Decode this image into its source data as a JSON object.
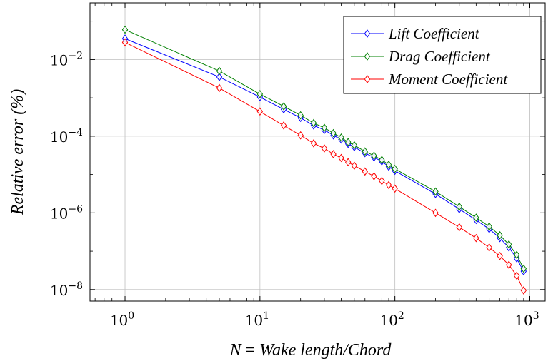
{
  "chart_data": {
    "type": "line",
    "title": "",
    "xlabel_math": "N",
    "xlabel_eq": " = ",
    "xlabel_text": "Wake length/Chord",
    "ylabel": "Relative error (%)",
    "x_scale": "log",
    "y_scale": "log",
    "xlim": [
      0.55,
      1300
    ],
    "ylim": [
      5e-09,
      0.3
    ],
    "grid": true,
    "legend_position": "top-right",
    "x_ticks": [
      {
        "base": "10",
        "exp": "0",
        "value": 1
      },
      {
        "base": "10",
        "exp": "1",
        "value": 10
      },
      {
        "base": "10",
        "exp": "2",
        "value": 100
      },
      {
        "base": "10",
        "exp": "3",
        "value": 1000
      }
    ],
    "y_ticks": [
      {
        "base": "10",
        "exp": "−2",
        "value": 0.01
      },
      {
        "base": "10",
        "exp": "−4",
        "value": 0.0001
      },
      {
        "base": "10",
        "exp": "−6",
        "value": 1e-06
      },
      {
        "base": "10",
        "exp": "−8",
        "value": 1e-08
      }
    ],
    "x": [
      1,
      5,
      10,
      15,
      20,
      25,
      30,
      35,
      40,
      45,
      50,
      60,
      70,
      80,
      90,
      100,
      200,
      300,
      400,
      500,
      600,
      700,
      800,
      900
    ],
    "series": [
      {
        "name": "Lift Coefficient",
        "color": "#0000ff",
        "values": [
          0.035,
          0.0035,
          0.00105,
          0.0005,
          0.0003,
          0.00019,
          0.000145,
          0.000105,
          8.2e-05,
          6.3e-05,
          5.2e-05,
          3.6e-05,
          2.8e-05,
          2.2e-05,
          1.6e-05,
          1.25e-05,
          3.1e-06,
          1.25e-06,
          6.5e-07,
          3.8e-07,
          2.2e-07,
          1.25e-07,
          6.5e-08,
          3e-08
        ]
      },
      {
        "name": "Drag Coefficient",
        "color": "#008000",
        "values": [
          0.06,
          0.005,
          0.00125,
          0.0006,
          0.00035,
          0.00022,
          0.000165,
          0.00012,
          9.2e-05,
          7e-05,
          5.8e-05,
          4e-05,
          3.1e-05,
          2.4e-05,
          1.8e-05,
          1.4e-05,
          3.6e-06,
          1.45e-06,
          7.5e-07,
          4.4e-07,
          2.6e-07,
          1.5e-07,
          8e-08,
          3.5e-08
        ]
      },
      {
        "name": "Moment Coefficient",
        "color": "#ff0000",
        "values": [
          0.028,
          0.0018,
          0.00044,
          0.00019,
          0.000105,
          6.5e-05,
          4.8e-05,
          3.4e-05,
          2.7e-05,
          2.1e-05,
          1.7e-05,
          1.2e-05,
          9e-06,
          6.8e-06,
          5.3e-06,
          4.3e-06,
          1e-06,
          4.2e-07,
          2.2e-07,
          1.25e-07,
          7.5e-08,
          4.4e-08,
          2.3e-08,
          9.5e-09
        ]
      }
    ]
  }
}
